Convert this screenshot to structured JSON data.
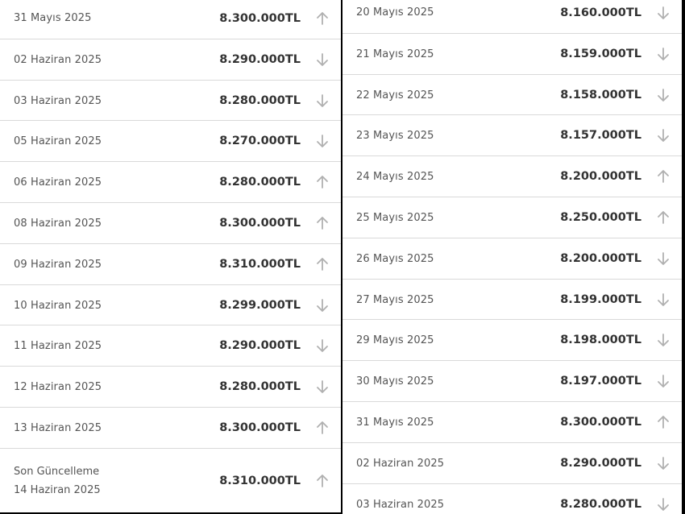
{
  "left_list": {
    "rows": [
      {
        "date": "31 Mayıs 2025",
        "price": "8.300.000TL",
        "trend": "up"
      },
      {
        "date": "02 Haziran 2025",
        "price": "8.290.000TL",
        "trend": "down"
      },
      {
        "date": "03 Haziran 2025",
        "price": "8.280.000TL",
        "trend": "down"
      },
      {
        "date": "05 Haziran 2025",
        "price": "8.270.000TL",
        "trend": "down"
      },
      {
        "date": "06 Haziran 2025",
        "price": "8.280.000TL",
        "trend": "up"
      },
      {
        "date": "08 Haziran 2025",
        "price": "8.300.000TL",
        "trend": "up"
      },
      {
        "date": "09 Haziran 2025",
        "price": "8.310.000TL",
        "trend": "up"
      },
      {
        "date": "10 Haziran 2025",
        "price": "8.299.000TL",
        "trend": "down"
      },
      {
        "date": "11 Haziran 2025",
        "price": "8.290.000TL",
        "trend": "down"
      },
      {
        "date": "12 Haziran 2025",
        "price": "8.280.000TL",
        "trend": "down"
      },
      {
        "date": "13 Haziran 2025",
        "price": "8.300.000TL",
        "trend": "up"
      }
    ],
    "last_update": {
      "label": "Son Güncelleme",
      "date": "14 Haziran 2025",
      "price": "8.310.000TL",
      "trend": "up"
    }
  },
  "right_list": {
    "rows": [
      {
        "date": "20 Mayıs 2025",
        "price": "8.160.000TL",
        "trend": "down"
      },
      {
        "date": "21 Mayıs 2025",
        "price": "8.159.000TL",
        "trend": "down"
      },
      {
        "date": "22 Mayıs 2025",
        "price": "8.158.000TL",
        "trend": "down"
      },
      {
        "date": "23 Mayıs 2025",
        "price": "8.157.000TL",
        "trend": "down"
      },
      {
        "date": "24 Mayıs 2025",
        "price": "8.200.000TL",
        "trend": "up"
      },
      {
        "date": "25 Mayıs 2025",
        "price": "8.250.000TL",
        "trend": "up"
      },
      {
        "date": "26 Mayıs 2025",
        "price": "8.200.000TL",
        "trend": "down"
      },
      {
        "date": "27 Mayıs 2025",
        "price": "8.199.000TL",
        "trend": "down"
      },
      {
        "date": "29 Mayıs 2025",
        "price": "8.198.000TL",
        "trend": "down"
      },
      {
        "date": "30 Mayıs 2025",
        "price": "8.197.000TL",
        "trend": "down"
      },
      {
        "date": "31 Mayıs 2025",
        "price": "8.300.000TL",
        "trend": "up"
      },
      {
        "date": "02 Haziran 2025",
        "price": "8.290.000TL",
        "trend": "down"
      },
      {
        "date": "03 Haziran 2025",
        "price": "8.280.000TL",
        "trend": "down"
      }
    ]
  },
  "icons": {
    "up": "arrow-up-icon",
    "down": "arrow-down-icon"
  },
  "colors": {
    "arrow": "#b0b0b0",
    "price": "#333333",
    "date": "#555555"
  }
}
